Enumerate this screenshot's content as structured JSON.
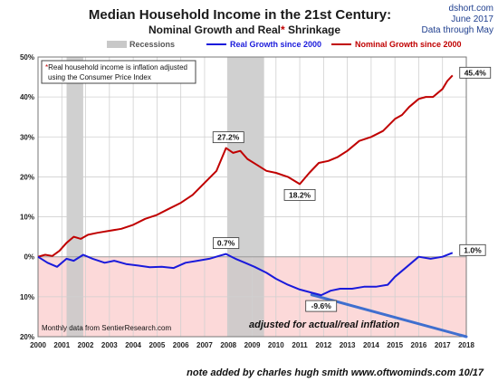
{
  "chart_data": {
    "type": "line",
    "title": "Median Household Income in the 21st Century:",
    "subtitle": {
      "part1": "Nominal  Growth and Real",
      "star": "*",
      "part2": " Shrinkage"
    },
    "source": [
      "dshort.com",
      "June 2017",
      "Data through May"
    ],
    "legend": {
      "recessions": "Recessions",
      "real": "Real Growth since 2000",
      "nominal": "Nominal Growth since 2000"
    },
    "note_box": {
      "star": "*",
      "line1": "Real household  income is inflation adjusted",
      "line2": "using  the Consumer Price Index"
    },
    "monthly_note": "Monthly data from SentierResearch.com",
    "adjusted_note": "adjusted for actual/real inflation",
    "footer_note": "note added by charles hugh smith  www.oftwominds.com  10/17",
    "colors": {
      "nominal": "#c00000",
      "real": "#1a1adb",
      "recession": "#c8c8c8",
      "negative_fill": "#fcd9d9",
      "adjusted_line": "#3f6fcf",
      "source_text": "#1f3f8f"
    },
    "x_ticks": [
      "2000",
      "2001",
      "2002",
      "2003",
      "2004",
      "2005",
      "2006",
      "2007",
      "2008",
      "2009",
      "2010",
      "2011",
      "2012",
      "2013",
      "2014",
      "2015",
      "2016",
      "2017",
      "2018"
    ],
    "y_ticks": [
      {
        "value": 50,
        "label": "50%"
      },
      {
        "value": 40,
        "label": "40%"
      },
      {
        "value": 30,
        "label": "30%"
      },
      {
        "value": 20,
        "label": "20%"
      },
      {
        "value": 10,
        "label": "10%"
      },
      {
        "value": 0,
        "label": "0%"
      },
      {
        "value": -10,
        "label": "10%"
      },
      {
        "value": -20,
        "label": "20%"
      }
    ],
    "xlim": [
      2000,
      2018
    ],
    "ylim": [
      -20,
      50
    ],
    "grid": true,
    "recessions": [
      [
        2001.2,
        2001.9
      ],
      [
        2007.95,
        2009.5
      ]
    ],
    "series": [
      {
        "name": "Nominal Growth since 2000",
        "key": "nominal",
        "x": [
          2000.0,
          2000.3,
          2000.6,
          2000.9,
          2001.2,
          2001.5,
          2001.8,
          2002.1,
          2002.5,
          2003.0,
          2003.5,
          2004.0,
          2004.5,
          2005.0,
          2005.5,
          2006.0,
          2006.5,
          2007.0,
          2007.5,
          2007.9,
          2008.2,
          2008.5,
          2008.8,
          2009.2,
          2009.6,
          2010.0,
          2010.5,
          2011.0,
          2011.4,
          2011.8,
          2012.2,
          2012.6,
          2013.0,
          2013.5,
          2014.0,
          2014.5,
          2015.0,
          2015.3,
          2015.6,
          2016.0,
          2016.3,
          2016.6,
          2017.0,
          2017.2,
          2017.42
        ],
        "y": [
          0.0,
          0.5,
          0.2,
          1.5,
          3.5,
          5.0,
          4.5,
          5.5,
          6.0,
          6.5,
          7.0,
          8.0,
          9.5,
          10.5,
          12.0,
          13.5,
          15.5,
          18.5,
          21.5,
          27.2,
          26.0,
          26.5,
          24.5,
          23.0,
          21.5,
          21.0,
          20.0,
          18.2,
          21.0,
          23.5,
          24.0,
          25.0,
          26.5,
          29.0,
          30.0,
          31.5,
          34.5,
          35.5,
          37.5,
          39.5,
          40.0,
          40.0,
          42.0,
          44.0,
          45.4
        ]
      },
      {
        "name": "Real Growth since 2000",
        "key": "real",
        "x": [
          2000.0,
          2000.4,
          2000.8,
          2001.2,
          2001.5,
          2001.9,
          2002.3,
          2002.8,
          2003.2,
          2003.7,
          2004.2,
          2004.7,
          2005.2,
          2005.7,
          2006.2,
          2006.7,
          2007.2,
          2007.6,
          2007.9,
          2008.3,
          2008.7,
          2009.1,
          2009.6,
          2010.0,
          2010.5,
          2011.0,
          2011.5,
          2011.9,
          2012.3,
          2012.7,
          2013.2,
          2013.7,
          2014.2,
          2014.7,
          2015.0,
          2015.5,
          2016.0,
          2016.5,
          2017.0,
          2017.42
        ],
        "y": [
          0.0,
          -1.5,
          -2.5,
          -0.5,
          -1.0,
          0.5,
          -0.5,
          -1.5,
          -1.0,
          -1.8,
          -2.2,
          -2.6,
          -2.5,
          -2.8,
          -1.5,
          -1.0,
          -0.5,
          0.2,
          0.7,
          -0.5,
          -1.5,
          -2.5,
          -4.0,
          -5.5,
          -7.0,
          -8.2,
          -9.0,
          -9.6,
          -8.5,
          -8.0,
          -8.0,
          -7.5,
          -7.5,
          -7.0,
          -5.0,
          -2.5,
          0.0,
          -0.5,
          0.0,
          1.0
        ]
      }
    ],
    "callouts": [
      {
        "text": "27.2%",
        "x": 2008.0,
        "y": 27.2,
        "pos": "above"
      },
      {
        "text": "18.2%",
        "x": 2011.0,
        "y": 18.2,
        "pos": "below"
      },
      {
        "text": "45.4%",
        "x": 2017.42,
        "y": 45.4,
        "pos": "right"
      },
      {
        "text": "0.7%",
        "x": 2007.9,
        "y": 0.7,
        "pos": "above"
      },
      {
        "text": "-9.6%",
        "x": 2011.9,
        "y": -9.6,
        "pos": "below"
      },
      {
        "text": "1.0%",
        "x": 2017.42,
        "y": 1.0,
        "pos": "right"
      }
    ],
    "adjusted_line": {
      "x": [
        2011.5,
        2018.0
      ],
      "y": [
        -9.5,
        -20.0
      ]
    }
  }
}
